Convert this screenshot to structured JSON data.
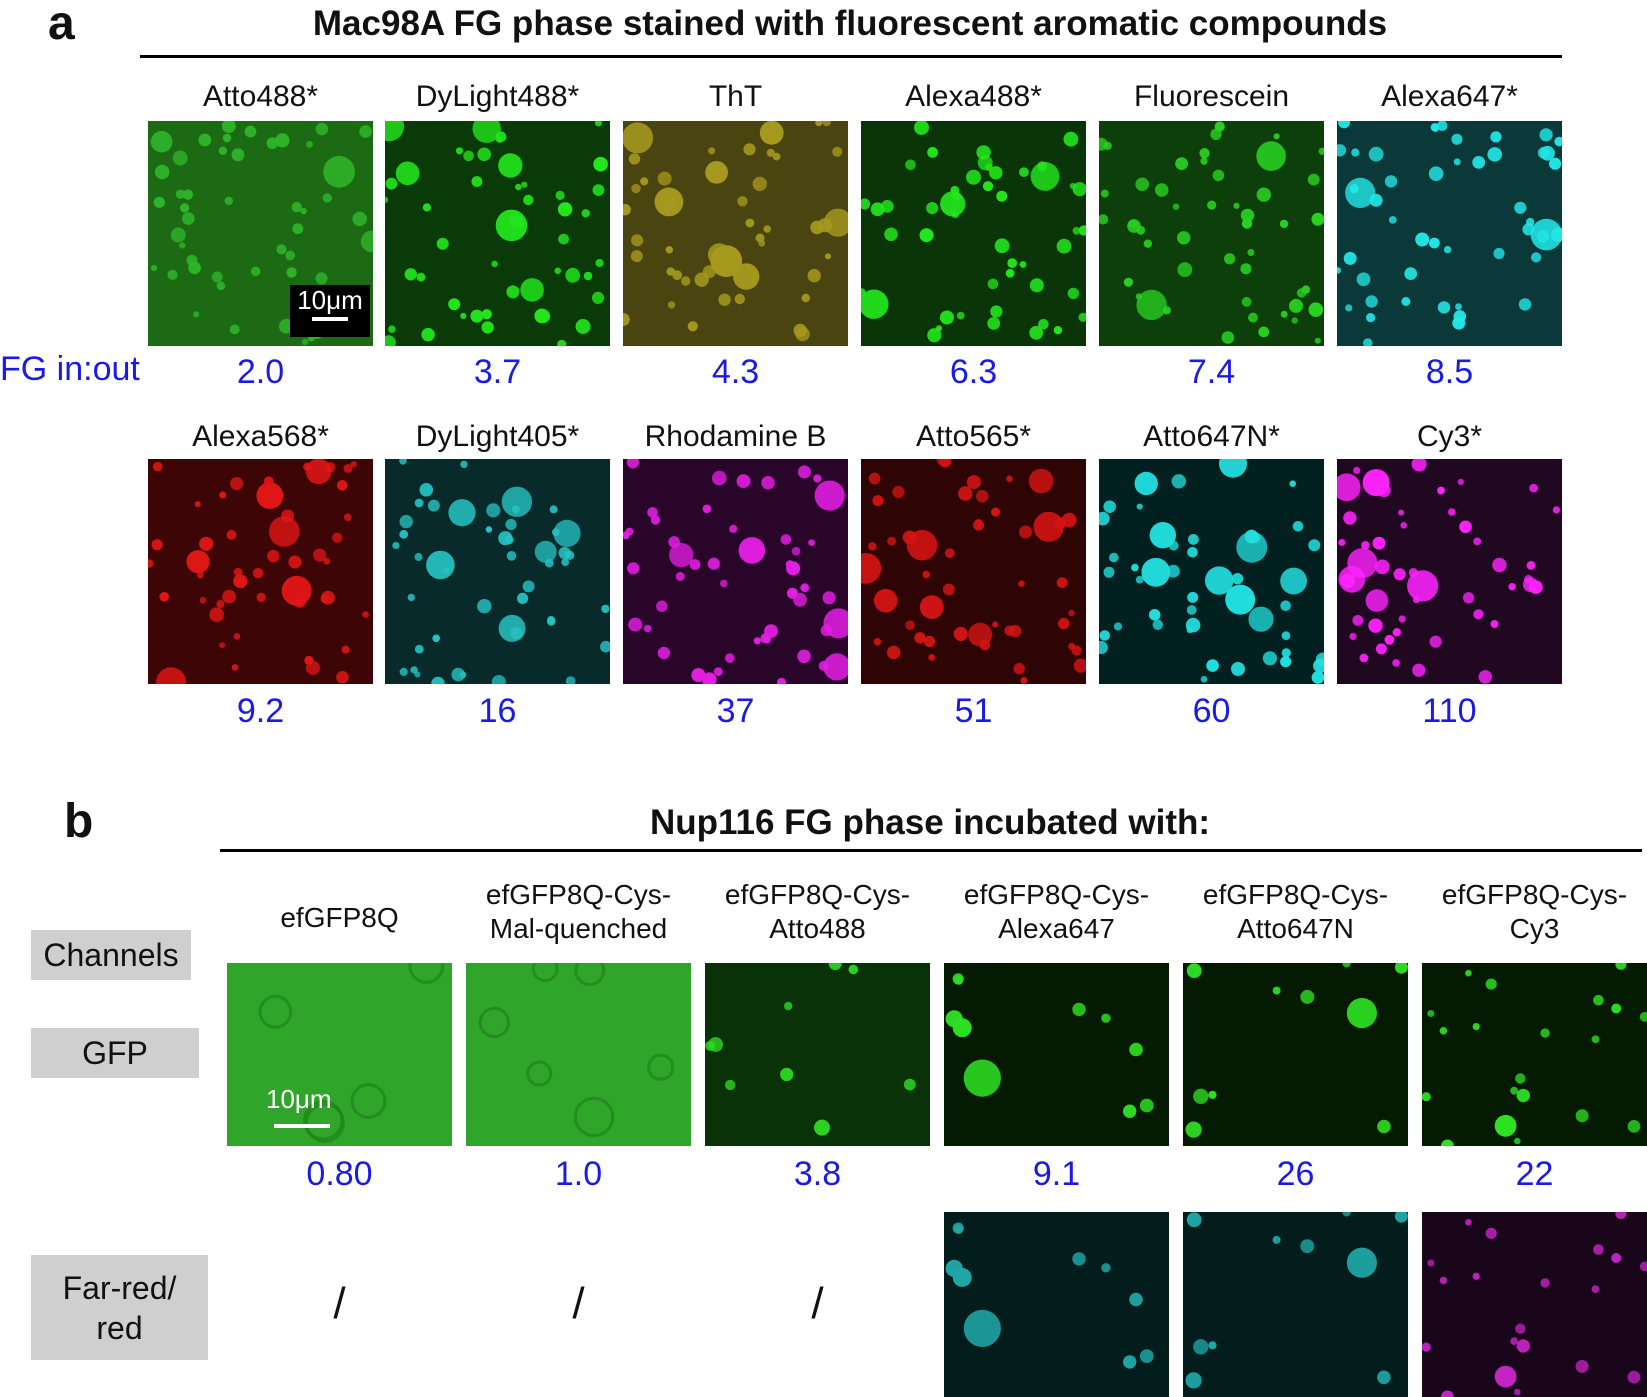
{
  "panel_a": {
    "letter": "a",
    "title": "Mac98A FG phase stained with fluorescent aromatic compounds",
    "ratio_label": "FG in:out",
    "scale_label": "10μm",
    "row1": [
      {
        "dye": "Atto488*",
        "ratio": "2.0",
        "color": "#2fb62a",
        "bg": "#1d6a14"
      },
      {
        "dye": "DyLight488*",
        "ratio": "3.7",
        "color": "#22e61c",
        "bg": "#0a3a08"
      },
      {
        "dye": "ThT",
        "ratio": "4.3",
        "color": "#a59a1e",
        "bg": "#4a4410"
      },
      {
        "dye": "Alexa488*",
        "ratio": "6.3",
        "color": "#22e61c",
        "bg": "#0a3508"
      },
      {
        "dye": "Fluorescein",
        "ratio": "7.4",
        "color": "#28d020",
        "bg": "#0d3f0a"
      },
      {
        "dye": "Alexa647*",
        "ratio": "8.5",
        "color": "#22e6e6",
        "bg": "#0b3838"
      }
    ],
    "row2": [
      {
        "dye": "Alexa568*",
        "ratio": "9.2",
        "color": "#e01616",
        "bg": "#3d0505"
      },
      {
        "dye": "DyLight405*",
        "ratio": "16",
        "color": "#26c2c2",
        "bg": "#082a2a"
      },
      {
        "dye": "Rhodamine B",
        "ratio": "37",
        "color": "#e21ee2",
        "bg": "#2a052a"
      },
      {
        "dye": "Atto565*",
        "ratio": "51",
        "color": "#d81414",
        "bg": "#2e0404"
      },
      {
        "dye": "Atto647N*",
        "ratio": "60",
        "color": "#22e0e0",
        "bg": "#022020"
      },
      {
        "dye": "Cy3*",
        "ratio": "110",
        "color": "#ff22ff",
        "bg": "#200820"
      }
    ]
  },
  "panel_b": {
    "letter": "b",
    "title": "Nup116 FG phase incubated with:",
    "scale_label": "10μm",
    "channels_label": "Channels",
    "gfp_label": "GFP",
    "farred_label_line1": "Far-red/",
    "farred_label_line2": "red",
    "slash": "/",
    "columns": [
      {
        "line1": "efGFP8Q",
        "line2": "",
        "ratio": "0.80"
      },
      {
        "line1": "efGFP8Q-Cys-",
        "line2": "Mal-quenched",
        "ratio": "1.0"
      },
      {
        "line1": "efGFP8Q-Cys-",
        "line2": "Atto488",
        "ratio": "3.8"
      },
      {
        "line1": "efGFP8Q-Cys-",
        "line2": "Alexa647",
        "ratio": "9.1"
      },
      {
        "line1": "efGFP8Q-Cys-",
        "line2": "Atto647N",
        "ratio": "26"
      },
      {
        "line1": "efGFP8Q-Cys-",
        "line2": "Cy3",
        "ratio": "22"
      }
    ],
    "farred_colors": [
      {
        "color": "#1fa8a8",
        "bg": "#031c1c"
      },
      {
        "color": "#1fa8a8",
        "bg": "#031c1c"
      },
      {
        "color": "#c424c4",
        "bg": "#1a061a"
      }
    ]
  }
}
